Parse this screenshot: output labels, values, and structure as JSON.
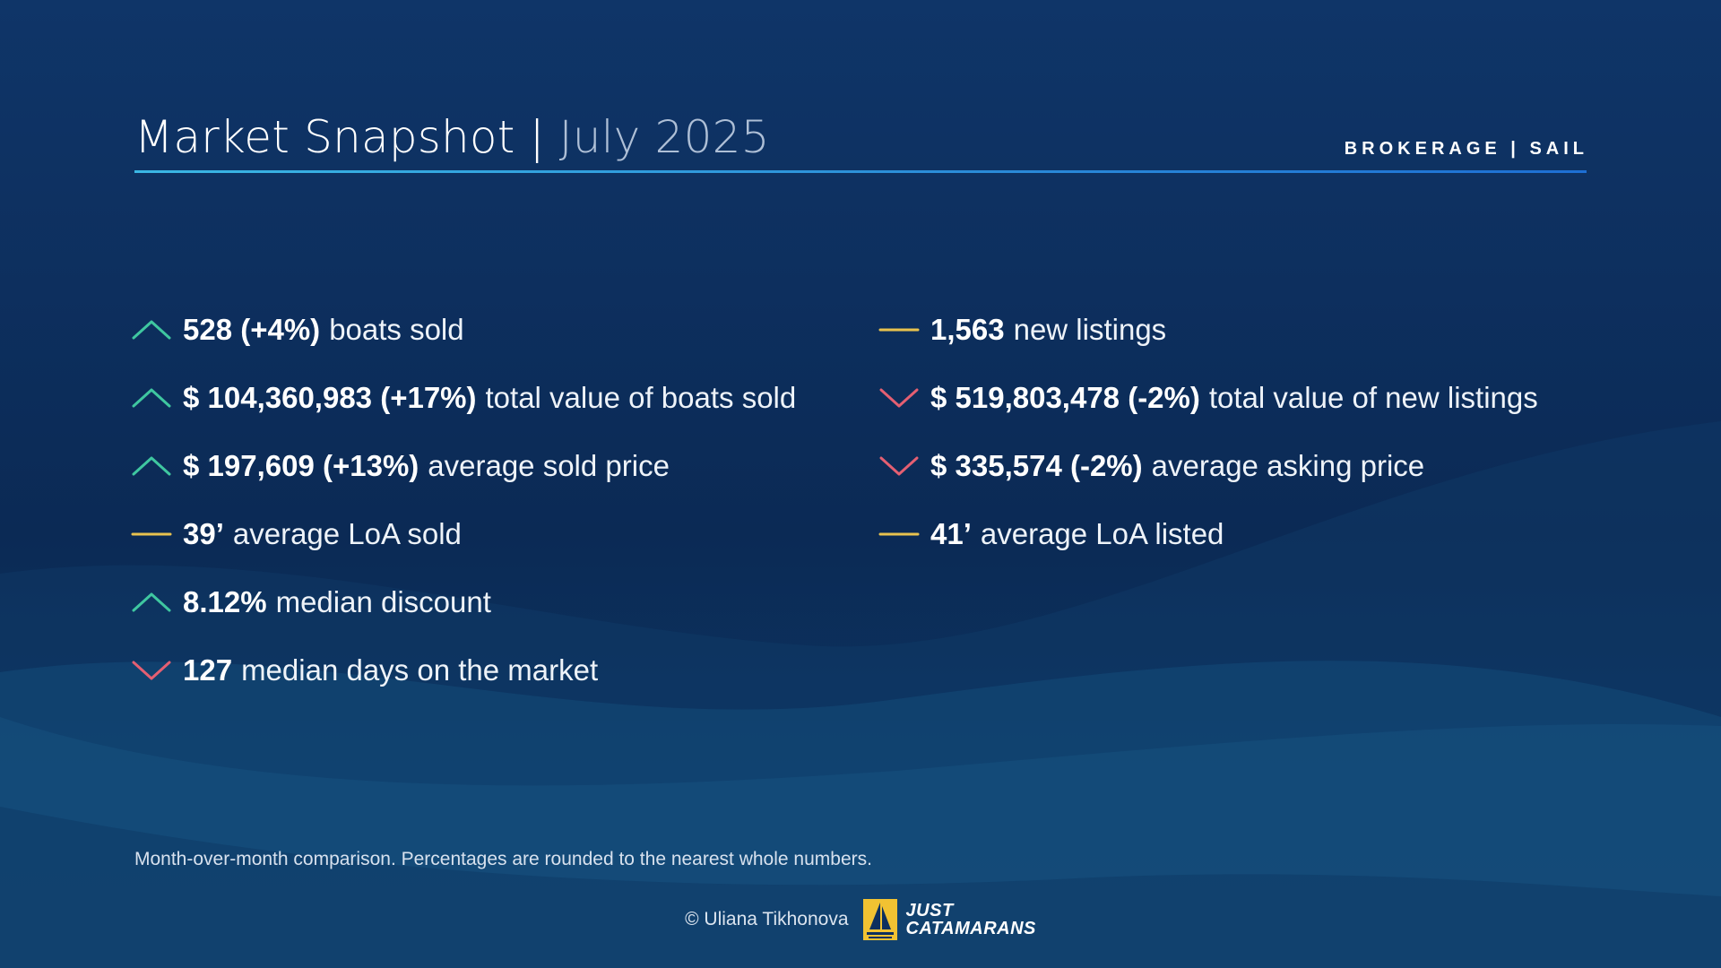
{
  "header": {
    "title_main": "Market Snapshot | ",
    "title_date": "July 2025",
    "tagline": "BROKERAGE | SAIL"
  },
  "stats_left": [
    {
      "value": "528 (+4%)",
      "label": "boats sold",
      "trend": "up"
    },
    {
      "value": "$ 104,360,983 (+17%)",
      "label": "total value of boats sold",
      "trend": "up"
    },
    {
      "value": "$ 197,609 (+13%)",
      "label": "average sold price",
      "trend": "up"
    },
    {
      "value": "39’",
      "label": "average LoA sold",
      "trend": "flat"
    },
    {
      "value": "8.12%",
      "label": "median discount",
      "trend": "up"
    },
    {
      "value": "127",
      "label": "median days on the market",
      "trend": "down"
    }
  ],
  "stats_right": [
    {
      "value": "1,563",
      "label": "new listings",
      "trend": "flat"
    },
    {
      "value": "$ 519,803,478 (-2%)",
      "label": "total value of new listings",
      "trend": "down"
    },
    {
      "value": "$ 335,574 (-2%)",
      "label": "average asking price",
      "trend": "down"
    },
    {
      "value": "41’",
      "label": "average LoA listed",
      "trend": "flat"
    }
  ],
  "trend_icons": {
    "up": "chevron-up-icon",
    "down": "chevron-down-icon",
    "flat": "dash-icon"
  },
  "colors": {
    "up": "#3fc7a0",
    "down": "#e45f72",
    "flat": "#e8c24e",
    "accent_rule": "#3ab7e4",
    "background": "#0d2f5e"
  },
  "footnote": "Month-over-month comparison. Percentages are rounded to the nearest whole numbers.",
  "footer": {
    "credit": "© Uliana Tikhonova",
    "logo_line1": "JUST",
    "logo_line2": "CATAMARANS"
  }
}
